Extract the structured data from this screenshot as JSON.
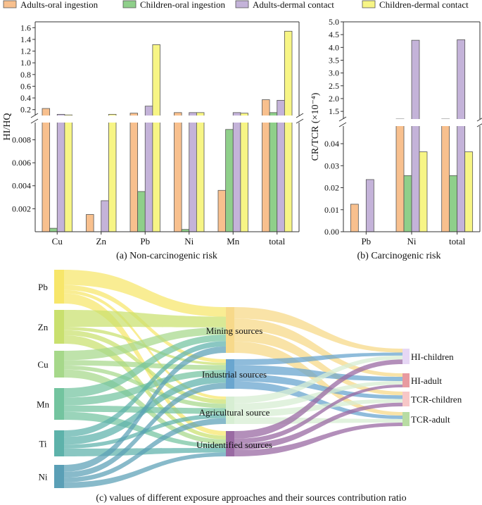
{
  "legend": {
    "items": [
      {
        "label": "Adults-oral ingestion",
        "color": "#f8c08e"
      },
      {
        "label": "Children-oral ingestion",
        "color": "#8fcf8a"
      },
      {
        "label": "Adults-dermal contact",
        "color": "#c4b3d9"
      },
      {
        "label": "Children-dermal contact",
        "color": "#f7f585"
      }
    ]
  },
  "chart_data": [
    {
      "type": "bar",
      "id": "a",
      "title": "(a) Non-carcinogenic risk",
      "ylabel": "HI/HQ",
      "categories": [
        "Cu",
        "Zn",
        "Pb",
        "Ni",
        "Mn",
        "total"
      ],
      "axis_break": true,
      "lower_ylim": [
        0,
        0.0095
      ],
      "lower_ticks": [
        0.002,
        0.004,
        0.006,
        0.008
      ],
      "upper_ylim": [
        0.1,
        1.7
      ],
      "upper_ticks": [
        0.2,
        0.4,
        0.6,
        0.8,
        1.0,
        1.2,
        1.4,
        1.6
      ],
      "series": [
        {
          "name": "Adults-oral ingestion",
          "values": [
            0.22,
            0.0015,
            0.14,
            0.15,
            0.0036,
            0.37
          ]
        },
        {
          "name": "Children-oral ingestion",
          "values": [
            0.0003,
            0.0,
            0.0035,
            0.0002,
            0.0089,
            0.15
          ]
        },
        {
          "name": "Adults-dermal contact",
          "values": [
            0.12,
            0.0027,
            0.26,
            0.15,
            0.15,
            0.36
          ]
        },
        {
          "name": "Children-dermal contact",
          "values": [
            0.11,
            0.12,
            1.31,
            0.15,
            0.14,
            1.54
          ]
        }
      ]
    },
    {
      "type": "bar",
      "id": "b",
      "title": "(b) Carcinogenic risk",
      "ylabel": "CR/TCR (×10⁻⁴)",
      "categories": [
        "Pb",
        "Ni",
        "total"
      ],
      "axis_break": true,
      "lower_ylim": [
        0,
        0.048
      ],
      "lower_ticks": [
        0.0,
        0.01,
        0.02,
        0.03,
        0.04
      ],
      "upper_ylim": [
        1.2,
        5.0
      ],
      "upper_ticks": [
        1.5,
        2.0,
        2.5,
        3.0,
        3.5,
        4.0,
        4.5,
        5.0
      ],
      "series": [
        {
          "name": "Adults-oral ingestion",
          "values": [
            0.0125,
            1.2,
            1.2
          ]
        },
        {
          "name": "Children-oral ingestion",
          "values": [
            0,
            0.0255,
            0.0255
          ]
        },
        {
          "name": "Adults-dermal contact",
          "values": [
            0.0237,
            4.28,
            4.3
          ]
        },
        {
          "name": "Children-dermal contact",
          "values": [
            0,
            0.0363,
            0.0363
          ]
        }
      ]
    },
    {
      "type": "sankey",
      "id": "c",
      "title": "(c) values of different exposure approaches and their sources contribution ratio",
      "left_nodes": [
        "Pb",
        "Zn",
        "Cu",
        "Mn",
        "Ti",
        "Ni"
      ],
      "left_colors": [
        "#f7e66a",
        "#c9e06e",
        "#a6d88a",
        "#73c49f",
        "#5db2aa",
        "#5a9fb6"
      ],
      "middle_nodes": [
        "Mining sources",
        "Industrial sources",
        "Agricultural source",
        "Unidentified sources"
      ],
      "middle_colors": [
        "#f7d98a",
        "#6aa6cf",
        "#d7eed3",
        "#9a6aa3"
      ],
      "right_nodes": [
        "HI-children",
        "HI-adult",
        "TCR-children",
        "TCR-adult"
      ],
      "right_colors": [
        "#e6d7f5",
        "#e89aa0",
        "#f7c7c7",
        "#b8dca3"
      ],
      "flows_left_to_middle": [
        [
          0.45,
          0.15,
          0.1,
          0.3
        ],
        [
          0.5,
          0.1,
          0.15,
          0.25
        ],
        [
          0.35,
          0.2,
          0.15,
          0.3
        ],
        [
          0.3,
          0.25,
          0.2,
          0.25
        ],
        [
          0.25,
          0.3,
          0.15,
          0.3
        ],
        [
          0.3,
          0.25,
          0.2,
          0.25
        ]
      ],
      "flows_middle_to_right": [
        [
          0.25,
          0.25,
          0.25,
          0.25
        ],
        [
          0.2,
          0.3,
          0.25,
          0.25
        ],
        [
          0.25,
          0.25,
          0.25,
          0.25
        ],
        [
          0.3,
          0.2,
          0.25,
          0.25
        ]
      ]
    }
  ]
}
